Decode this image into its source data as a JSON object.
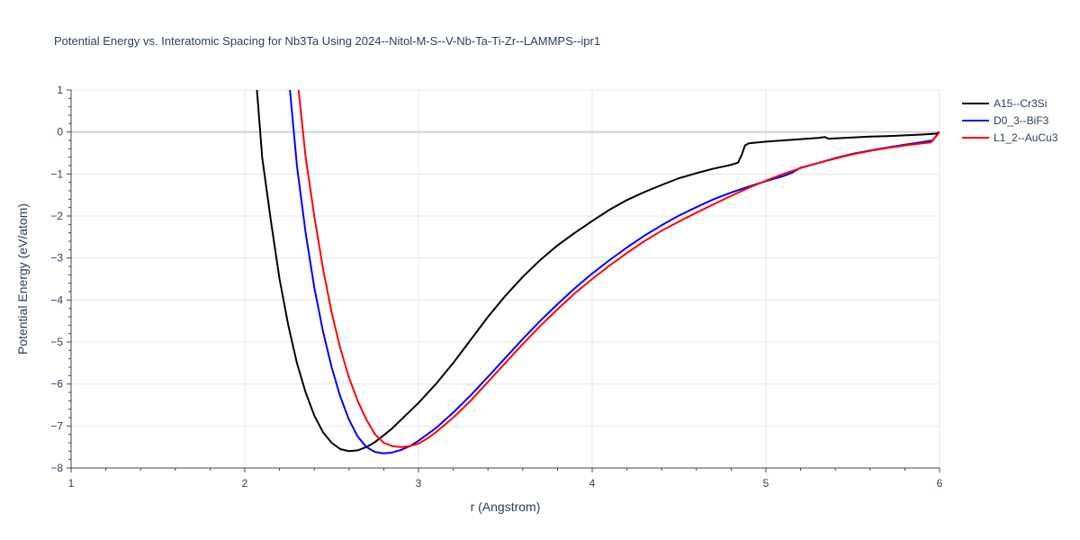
{
  "chart_data": {
    "type": "line",
    "title": "Potential Energy vs. Interatomic Spacing for Nb3Ta Using 2024--Nitol-M-S--V-Nb-Ta-Ti-Zr--LAMMPS--ipr1",
    "xlabel": "r (Angstrom)",
    "ylabel": "Potential Energy (eV/atom)",
    "xlim": [
      1,
      6
    ],
    "ylim": [
      -8,
      1
    ],
    "xticks": [
      1,
      2,
      3,
      4,
      5,
      6
    ],
    "yticks": [
      1,
      0,
      -1,
      -2,
      -3,
      -4,
      -5,
      -6,
      -7,
      -8
    ],
    "xtick_labels": [
      "1",
      "2",
      "3",
      "4",
      "5",
      "6"
    ],
    "ytick_labels": [
      "1",
      "0",
      "−1",
      "−2",
      "−3",
      "−4",
      "−5",
      "−6",
      "−7",
      "−8"
    ],
    "grid": true,
    "legend_position": "top-right",
    "series": [
      {
        "name": "A15--Cr3Si",
        "color": "#000000",
        "x": [
          2.07,
          2.1,
          2.15,
          2.2,
          2.25,
          2.3,
          2.35,
          2.4,
          2.45,
          2.5,
          2.55,
          2.6,
          2.65,
          2.7,
          2.75,
          2.8,
          2.85,
          2.9,
          3.0,
          3.1,
          3.2,
          3.3,
          3.4,
          3.5,
          3.6,
          3.7,
          3.8,
          3.9,
          4.0,
          4.1,
          4.2,
          4.3,
          4.4,
          4.5,
          4.6,
          4.7,
          4.8,
          4.84,
          4.86,
          4.88,
          4.9,
          5.0,
          5.1,
          5.2,
          5.3,
          5.34,
          5.36,
          5.4,
          5.5,
          5.6,
          5.7,
          5.8,
          5.9,
          5.98,
          6.0
        ],
        "y": [
          1.0,
          -0.6,
          -2.1,
          -3.5,
          -4.6,
          -5.5,
          -6.2,
          -6.75,
          -7.15,
          -7.4,
          -7.55,
          -7.6,
          -7.58,
          -7.5,
          -7.38,
          -7.22,
          -7.05,
          -6.85,
          -6.45,
          -6.0,
          -5.5,
          -4.95,
          -4.4,
          -3.9,
          -3.45,
          -3.05,
          -2.7,
          -2.4,
          -2.12,
          -1.85,
          -1.62,
          -1.43,
          -1.26,
          -1.1,
          -0.98,
          -0.87,
          -0.78,
          -0.73,
          -0.55,
          -0.32,
          -0.27,
          -0.23,
          -0.2,
          -0.17,
          -0.14,
          -0.12,
          -0.16,
          -0.15,
          -0.13,
          -0.11,
          -0.1,
          -0.08,
          -0.06,
          -0.04,
          0.0
        ]
      },
      {
        "name": "D0_3--BiF3",
        "color": "#0000ff",
        "x": [
          2.26,
          2.3,
          2.35,
          2.4,
          2.45,
          2.5,
          2.55,
          2.6,
          2.65,
          2.7,
          2.75,
          2.8,
          2.85,
          2.9,
          2.95,
          3.0,
          3.1,
          3.2,
          3.3,
          3.4,
          3.5,
          3.6,
          3.7,
          3.8,
          3.9,
          4.0,
          4.1,
          4.2,
          4.3,
          4.4,
          4.5,
          4.6,
          4.7,
          4.8,
          4.9,
          5.0,
          5.1,
          5.15,
          5.2,
          5.3,
          5.4,
          5.5,
          5.6,
          5.7,
          5.8,
          5.9,
          5.96,
          6.0
        ],
        "y": [
          1.0,
          -0.8,
          -2.4,
          -3.7,
          -4.75,
          -5.6,
          -6.3,
          -6.85,
          -7.25,
          -7.5,
          -7.62,
          -7.65,
          -7.63,
          -7.57,
          -7.48,
          -7.35,
          -7.05,
          -6.68,
          -6.27,
          -5.83,
          -5.38,
          -4.93,
          -4.5,
          -4.1,
          -3.72,
          -3.37,
          -3.05,
          -2.75,
          -2.47,
          -2.22,
          -1.99,
          -1.79,
          -1.6,
          -1.44,
          -1.3,
          -1.17,
          -1.05,
          -0.97,
          -0.85,
          -0.74,
          -0.62,
          -0.52,
          -0.44,
          -0.37,
          -0.3,
          -0.24,
          -0.2,
          0.0
        ]
      },
      {
        "name": "L1_2--AuCu3",
        "color": "#ff0000",
        "x": [
          2.31,
          2.35,
          2.4,
          2.45,
          2.5,
          2.55,
          2.6,
          2.65,
          2.7,
          2.75,
          2.8,
          2.85,
          2.9,
          2.95,
          3.0,
          3.05,
          3.1,
          3.2,
          3.3,
          3.4,
          3.5,
          3.6,
          3.7,
          3.8,
          3.9,
          4.0,
          4.1,
          4.2,
          4.3,
          4.4,
          4.5,
          4.6,
          4.7,
          4.8,
          4.9,
          5.0,
          5.1,
          5.2,
          5.3,
          5.4,
          5.5,
          5.6,
          5.7,
          5.8,
          5.9,
          5.95,
          6.0
        ],
        "y": [
          1.0,
          -0.6,
          -2.0,
          -3.25,
          -4.3,
          -5.15,
          -5.85,
          -6.4,
          -6.85,
          -7.2,
          -7.4,
          -7.48,
          -7.5,
          -7.48,
          -7.42,
          -7.3,
          -7.15,
          -6.8,
          -6.4,
          -5.95,
          -5.5,
          -5.05,
          -4.62,
          -4.22,
          -3.84,
          -3.5,
          -3.18,
          -2.88,
          -2.6,
          -2.35,
          -2.13,
          -1.92,
          -1.72,
          -1.52,
          -1.33,
          -1.16,
          -1.0,
          -0.86,
          -0.74,
          -0.63,
          -0.53,
          -0.45,
          -0.38,
          -0.32,
          -0.27,
          -0.25,
          0.0
        ]
      }
    ]
  }
}
